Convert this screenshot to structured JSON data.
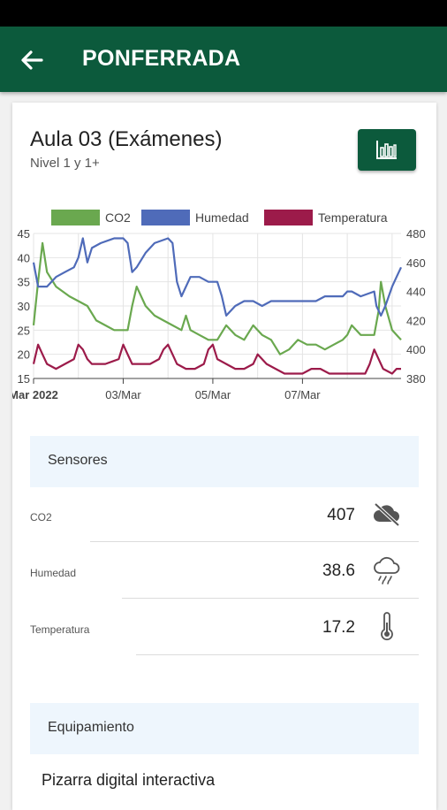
{
  "header": {
    "title": "PONFERRADA",
    "back_icon": "arrow-left-icon"
  },
  "room": {
    "title": "Aula 03 (Exámenes)",
    "subtitle": "Nivel 1 y 1+",
    "chart_button_icon": "bar-chart-icon"
  },
  "chart_data": {
    "type": "line",
    "legend_position": "top",
    "grid": true,
    "x_tick_labels": [
      "Mar 2022",
      "03/Mar",
      "05/Mar",
      "07/Mar"
    ],
    "x_ticks": [
      0,
      2,
      4,
      6
    ],
    "x_range": [
      0,
      8.2
    ],
    "y_left_range": [
      15,
      45
    ],
    "y_left_ticks": [
      15,
      20,
      25,
      30,
      35,
      40,
      45
    ],
    "y_right_range": [
      380,
      480
    ],
    "y_right_ticks": [
      380,
      400,
      420,
      440,
      460,
      480
    ],
    "series": [
      {
        "name": "CO2",
        "color": "#6aa84f",
        "axis": "left",
        "points": [
          [
            0,
            26
          ],
          [
            0.1,
            35
          ],
          [
            0.2,
            43
          ],
          [
            0.3,
            37
          ],
          [
            0.5,
            34
          ],
          [
            0.8,
            32
          ],
          [
            1.0,
            31
          ],
          [
            1.2,
            30
          ],
          [
            1.4,
            27
          ],
          [
            1.6,
            26
          ],
          [
            1.8,
            25
          ],
          [
            2.1,
            25
          ],
          [
            2.2,
            30
          ],
          [
            2.3,
            34
          ],
          [
            2.5,
            30
          ],
          [
            2.7,
            28
          ],
          [
            2.9,
            27
          ],
          [
            3.1,
            26
          ],
          [
            3.3,
            25
          ],
          [
            3.4,
            28
          ],
          [
            3.5,
            25
          ],
          [
            3.7,
            24
          ],
          [
            3.9,
            23
          ],
          [
            4.1,
            23
          ],
          [
            4.3,
            26
          ],
          [
            4.5,
            24
          ],
          [
            4.7,
            23
          ],
          [
            4.9,
            26
          ],
          [
            5.1,
            24
          ],
          [
            5.3,
            23
          ],
          [
            5.5,
            20
          ],
          [
            5.7,
            21
          ],
          [
            5.9,
            23
          ],
          [
            6.1,
            22
          ],
          [
            6.3,
            22
          ],
          [
            6.5,
            21
          ],
          [
            6.7,
            22
          ],
          [
            6.9,
            23
          ],
          [
            7.0,
            24
          ],
          [
            7.1,
            26
          ],
          [
            7.3,
            24
          ],
          [
            7.6,
            24
          ],
          [
            7.7,
            29
          ],
          [
            7.75,
            35
          ],
          [
            7.85,
            30
          ],
          [
            8.0,
            25
          ],
          [
            8.1,
            24
          ],
          [
            8.2,
            23
          ]
        ]
      },
      {
        "name": "Humedad",
        "color": "#4f6bb9",
        "axis": "left",
        "points": [
          [
            0,
            39
          ],
          [
            0.1,
            34
          ],
          [
            0.3,
            34
          ],
          [
            0.5,
            36
          ],
          [
            0.7,
            37
          ],
          [
            0.9,
            38
          ],
          [
            1.0,
            40
          ],
          [
            1.1,
            44
          ],
          [
            1.2,
            39
          ],
          [
            1.3,
            42
          ],
          [
            1.5,
            43
          ],
          [
            1.8,
            44
          ],
          [
            2.0,
            44
          ],
          [
            2.1,
            43
          ],
          [
            2.2,
            37
          ],
          [
            2.3,
            38
          ],
          [
            2.5,
            41
          ],
          [
            2.7,
            43
          ],
          [
            3.0,
            44
          ],
          [
            3.1,
            43
          ],
          [
            3.2,
            35
          ],
          [
            3.3,
            32
          ],
          [
            3.5,
            36
          ],
          [
            3.7,
            36
          ],
          [
            3.9,
            35
          ],
          [
            4.1,
            35
          ],
          [
            4.2,
            32
          ],
          [
            4.3,
            28
          ],
          [
            4.5,
            30
          ],
          [
            4.7,
            31
          ],
          [
            4.9,
            31
          ],
          [
            5.1,
            30
          ],
          [
            5.3,
            31
          ],
          [
            5.5,
            31
          ],
          [
            5.7,
            31
          ],
          [
            5.9,
            31
          ],
          [
            6.1,
            31
          ],
          [
            6.3,
            31
          ],
          [
            6.5,
            32
          ],
          [
            6.7,
            32
          ],
          [
            6.9,
            32
          ],
          [
            7.0,
            33
          ],
          [
            7.1,
            33
          ],
          [
            7.3,
            32
          ],
          [
            7.6,
            33
          ],
          [
            7.65,
            30
          ],
          [
            7.75,
            28
          ],
          [
            7.85,
            30
          ],
          [
            8.0,
            34
          ],
          [
            8.1,
            36
          ],
          [
            8.2,
            38
          ]
        ]
      },
      {
        "name": "Temperatura",
        "color": "#9c1b4a",
        "axis": "left",
        "points": [
          [
            0,
            18
          ],
          [
            0.1,
            22
          ],
          [
            0.2,
            20
          ],
          [
            0.3,
            18
          ],
          [
            0.5,
            17
          ],
          [
            0.7,
            18
          ],
          [
            0.9,
            19
          ],
          [
            1.0,
            22
          ],
          [
            1.1,
            21
          ],
          [
            1.2,
            19
          ],
          [
            1.3,
            18
          ],
          [
            1.6,
            18
          ],
          [
            1.9,
            19
          ],
          [
            2.0,
            22
          ],
          [
            2.1,
            20
          ],
          [
            2.2,
            18
          ],
          [
            2.4,
            18
          ],
          [
            2.6,
            18
          ],
          [
            2.8,
            19
          ],
          [
            2.9,
            21
          ],
          [
            3.0,
            22
          ],
          [
            3.1,
            20
          ],
          [
            3.2,
            18
          ],
          [
            3.4,
            17
          ],
          [
            3.6,
            17
          ],
          [
            3.8,
            18
          ],
          [
            3.9,
            21
          ],
          [
            4.0,
            22
          ],
          [
            4.1,
            19
          ],
          [
            4.3,
            18
          ],
          [
            4.5,
            17
          ],
          [
            4.7,
            17
          ],
          [
            4.9,
            18
          ],
          [
            5.0,
            20
          ],
          [
            5.2,
            18
          ],
          [
            5.4,
            17
          ],
          [
            5.6,
            16
          ],
          [
            5.8,
            16
          ],
          [
            6.0,
            16
          ],
          [
            6.2,
            17
          ],
          [
            6.4,
            17
          ],
          [
            6.6,
            16
          ],
          [
            6.8,
            16
          ],
          [
            7.0,
            16
          ],
          [
            7.2,
            16
          ],
          [
            7.4,
            16
          ],
          [
            7.5,
            18
          ],
          [
            7.6,
            21
          ],
          [
            7.7,
            19
          ],
          [
            7.8,
            17
          ],
          [
            8.0,
            16
          ],
          [
            8.1,
            17
          ],
          [
            8.2,
            17
          ]
        ]
      }
    ]
  },
  "sensors": {
    "title": "Sensores",
    "items": [
      {
        "label": "CO2",
        "value": "407",
        "icon": "cloud-off-icon"
      },
      {
        "label": "Humedad",
        "value": "38.6",
        "icon": "cloud-rain-icon"
      },
      {
        "label": "Temperatura",
        "value": "17.2",
        "icon": "thermometer-icon"
      }
    ]
  },
  "equipment": {
    "title": "Equipamiento",
    "items": [
      "Pizarra digital interactiva"
    ]
  }
}
